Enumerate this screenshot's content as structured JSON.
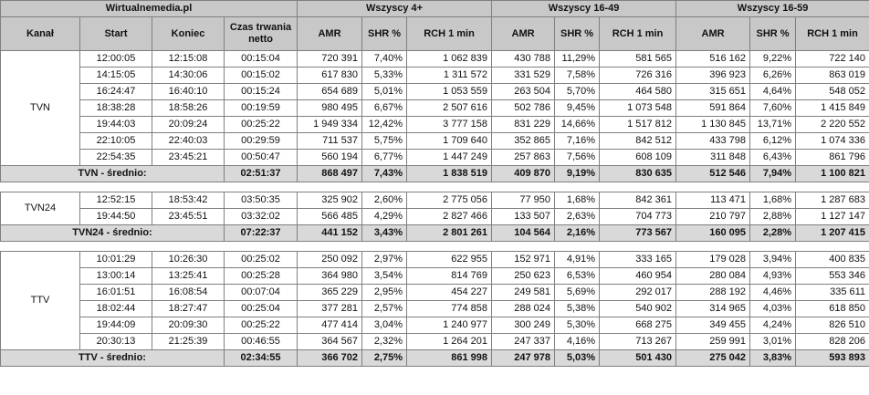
{
  "header": {
    "source": "Wirtualnemedia.pl",
    "groups": [
      "Wszyscy 4+",
      "Wszyscy 16-49",
      "Wszyscy 16-59"
    ],
    "columns": {
      "kanal": "Kanał",
      "start": "Start",
      "koniec": "Koniec",
      "czas": "Czas trwania netto",
      "amr": "AMR",
      "shr": "SHR %",
      "rch": "RCH 1 min"
    }
  },
  "channels": [
    {
      "name": "TVN",
      "rows": [
        [
          "12:00:05",
          "12:15:08",
          "00:15:04",
          "720 391",
          "7,40%",
          "1 062 839",
          "430 788",
          "11,29%",
          "581 565",
          "516 162",
          "9,22%",
          "722 140"
        ],
        [
          "14:15:05",
          "14:30:06",
          "00:15:02",
          "617 830",
          "5,33%",
          "1 311 572",
          "331 529",
          "7,58%",
          "726 316",
          "396 923",
          "6,26%",
          "863 019"
        ],
        [
          "16:24:47",
          "16:40:10",
          "00:15:24",
          "654 689",
          "5,01%",
          "1 053 559",
          "263 504",
          "5,70%",
          "464 580",
          "315 651",
          "4,64%",
          "548 052"
        ],
        [
          "18:38:28",
          "18:58:26",
          "00:19:59",
          "980 495",
          "6,67%",
          "2 507 616",
          "502 786",
          "9,45%",
          "1 073 548",
          "591 864",
          "7,60%",
          "1 415 849"
        ],
        [
          "19:44:03",
          "20:09:24",
          "00:25:22",
          "1 949 334",
          "12,42%",
          "3 777 158",
          "831 229",
          "14,66%",
          "1 517 812",
          "1 130 845",
          "13,71%",
          "2 220 552"
        ],
        [
          "22:10:05",
          "22:40:03",
          "00:29:59",
          "711 537",
          "5,75%",
          "1 709 640",
          "352 865",
          "7,16%",
          "842 512",
          "433 798",
          "6,12%",
          "1 074 336"
        ],
        [
          "22:54:35",
          "23:45:21",
          "00:50:47",
          "560 194",
          "6,77%",
          "1 447 249",
          "257 863",
          "7,56%",
          "608 109",
          "311 848",
          "6,43%",
          "861 796"
        ]
      ],
      "avg": [
        "TVN - średnio:",
        "02:51:37",
        "868 497",
        "7,43%",
        "1 838 519",
        "409 870",
        "9,19%",
        "830 635",
        "512 546",
        "7,94%",
        "1 100 821"
      ]
    },
    {
      "name": "TVN24",
      "rows": [
        [
          "12:52:15",
          "18:53:42",
          "03:50:35",
          "325 902",
          "2,60%",
          "2 775 056",
          "77 950",
          "1,68%",
          "842 361",
          "113 471",
          "1,68%",
          "1 287 683"
        ],
        [
          "19:44:50",
          "23:45:51",
          "03:32:02",
          "566 485",
          "4,29%",
          "2 827 466",
          "133 507",
          "2,63%",
          "704 773",
          "210 797",
          "2,88%",
          "1 127 147"
        ]
      ],
      "avg": [
        "TVN24 - średnio:",
        "07:22:37",
        "441 152",
        "3,43%",
        "2 801 261",
        "104 564",
        "2,16%",
        "773 567",
        "160 095",
        "2,28%",
        "1 207 415"
      ]
    },
    {
      "name": "TTV",
      "rows": [
        [
          "10:01:29",
          "10:26:30",
          "00:25:02",
          "250 092",
          "2,97%",
          "622 955",
          "152 971",
          "4,91%",
          "333 165",
          "179 028",
          "3,94%",
          "400 835"
        ],
        [
          "13:00:14",
          "13:25:41",
          "00:25:28",
          "364 980",
          "3,54%",
          "814 769",
          "250 623",
          "6,53%",
          "460 954",
          "280 084",
          "4,93%",
          "553 346"
        ],
        [
          "16:01:51",
          "16:08:54",
          "00:07:04",
          "365 229",
          "2,95%",
          "454 227",
          "249 581",
          "5,69%",
          "292 017",
          "288 192",
          "4,46%",
          "335 611"
        ],
        [
          "18:02:44",
          "18:27:47",
          "00:25:04",
          "377 281",
          "2,57%",
          "774 858",
          "288 024",
          "5,38%",
          "540 902",
          "314 965",
          "4,03%",
          "618 850"
        ],
        [
          "19:44:09",
          "20:09:30",
          "00:25:22",
          "477 414",
          "3,04%",
          "1 240 977",
          "300 249",
          "5,30%",
          "668 275",
          "349 455",
          "4,24%",
          "826 510"
        ],
        [
          "20:30:13",
          "21:25:39",
          "00:46:55",
          "364 567",
          "2,32%",
          "1 264 201",
          "247 337",
          "4,16%",
          "713 267",
          "259 991",
          "3,01%",
          "828 206"
        ]
      ],
      "avg": [
        "TTV - średnio:",
        "02:34:55",
        "366 702",
        "2,75%",
        "861 998",
        "247 978",
        "5,03%",
        "501 430",
        "275 042",
        "3,83%",
        "593 893"
      ]
    }
  ]
}
